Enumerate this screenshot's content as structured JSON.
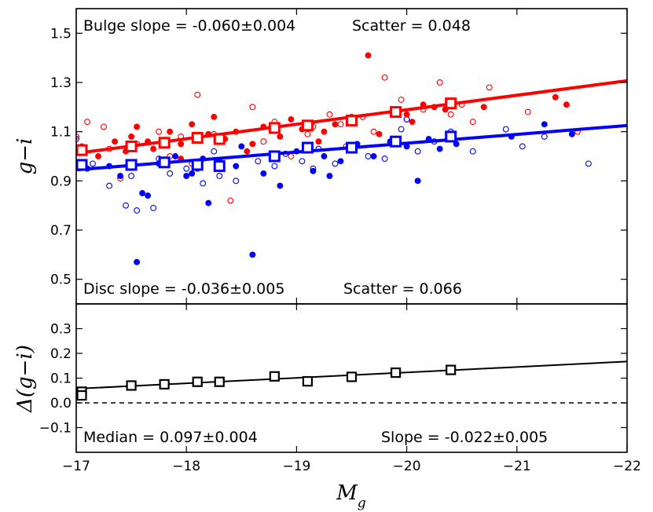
{
  "chart_data": [
    {
      "type": "scatter",
      "panel": "top",
      "ylabel": "g−i",
      "xlim": [
        -17,
        -22
      ],
      "ylim": [
        0.4,
        1.6
      ],
      "yticks": [
        "0.5",
        "0.7",
        "0.9",
        "1.1",
        "1.3",
        "1.5"
      ],
      "yticks_values": [
        0.5,
        0.7,
        0.9,
        1.1,
        1.3,
        1.5
      ],
      "annotations": {
        "bulge": "Bulge slope = -0.060±0.004",
        "bulge_scatter": "Scatter = 0.048",
        "disc": "Disc slope = -0.036±0.005",
        "disc_scatter": "Scatter = 0.066"
      },
      "colors": {
        "bulge": "#ff0000",
        "disc": "#0000ff"
      },
      "series": [
        {
          "name": "Bulge fit",
          "kind": "line",
          "x": [
            -17.0,
            -22.0
          ],
          "y": [
            1.012,
            1.307
          ]
        },
        {
          "name": "Disc fit",
          "kind": "line",
          "x": [
            -17.0,
            -22.0
          ],
          "y": [
            0.945,
            1.125
          ]
        },
        {
          "name": "Bulge median",
          "kind": "squares",
          "x": [
            -17.05,
            -17.5,
            -17.8,
            -18.1,
            -18.3,
            -18.8,
            -19.1,
            -19.5,
            -19.9,
            -20.4
          ],
          "y": [
            1.025,
            1.04,
            1.055,
            1.075,
            1.07,
            1.115,
            1.125,
            1.145,
            1.18,
            1.215
          ]
        },
        {
          "name": "Disc median",
          "kind": "squares",
          "x": [
            -17.05,
            -17.5,
            -17.8,
            -18.1,
            -18.3,
            -18.8,
            -19.1,
            -19.5,
            -19.9,
            -20.4
          ],
          "y": [
            0.965,
            0.965,
            0.975,
            0.965,
            0.96,
            1.0,
            1.035,
            1.035,
            1.06,
            1.08
          ]
        },
        {
          "name": "Bulge filled",
          "kind": "filled",
          "x": [
            -17.05,
            -17.2,
            -17.35,
            -17.5,
            -17.55,
            -17.7,
            -17.85,
            -17.95,
            -18.05,
            -18.2,
            -18.35,
            -18.45,
            -18.55,
            -18.7,
            -18.85,
            -18.95,
            -19.05,
            -19.2,
            -19.35,
            -19.5,
            -19.65,
            -19.75,
            -19.9,
            -20.05,
            -20.15,
            -20.25,
            -20.35,
            -20.7,
            -21.35,
            -21.45,
            -18.25,
            -17.95,
            -18.6,
            -19.25,
            -20.0,
            -17.45,
            -17.65
          ],
          "y": [
            1.04,
            1.0,
            1.06,
            1.08,
            1.12,
            1.03,
            1.1,
            1.05,
            1.13,
            1.09,
            1.07,
            1.1,
            1.02,
            1.12,
            1.08,
            1.15,
            1.11,
            1.06,
            1.13,
            1.16,
            1.41,
            1.09,
            1.18,
            1.14,
            1.21,
            1.2,
            1.19,
            1.2,
            1.24,
            1.21,
            1.16,
            0.99,
            1.05,
            1.1,
            1.17,
            1.02,
            1.06
          ]
        },
        {
          "name": "Bulge open",
          "kind": "open",
          "x": [
            -17.0,
            -17.1,
            -17.25,
            -17.4,
            -17.55,
            -17.75,
            -17.95,
            -18.1,
            -18.25,
            -18.4,
            -18.6,
            -18.8,
            -18.95,
            -19.15,
            -19.3,
            -19.45,
            -19.6,
            -19.7,
            -19.8,
            -19.95,
            -20.15,
            -20.3,
            -20.5,
            -20.75,
            -21.1,
            -21.55,
            -18.05,
            -18.7,
            -19.4,
            -20.0,
            -20.4,
            -17.3,
            -17.85,
            -19.1,
            -20.6
          ],
          "y": [
            1.08,
            1.14,
            1.12,
            0.91,
            1.05,
            1.1,
            1.08,
            1.25,
            1.09,
            0.82,
            1.2,
            1.14,
            1.0,
            1.12,
            1.17,
            1.04,
            1.16,
            1.1,
            1.32,
            1.23,
            1.19,
            1.3,
            1.21,
            1.28,
            1.18,
            1.1,
            0.97,
            1.06,
            1.13,
            1.15,
            1.17,
            1.03,
            1.0,
            1.09,
            1.14
          ]
        },
        {
          "name": "Disc filled",
          "kind": "filled",
          "x": [
            -17.1,
            -17.3,
            -17.4,
            -17.55,
            -17.6,
            -17.75,
            -17.9,
            -18.0,
            -18.1,
            -18.2,
            -18.3,
            -18.45,
            -18.6,
            -18.7,
            -18.85,
            -19.0,
            -19.15,
            -19.25,
            -19.4,
            -19.55,
            -19.7,
            -19.85,
            -20.0,
            -20.2,
            -20.3,
            -20.45,
            -20.95,
            -21.25,
            -21.5,
            -18.15,
            -18.5,
            -19.3,
            -20.1,
            -17.65,
            -18.05
          ],
          "y": [
            0.95,
            0.96,
            0.92,
            0.57,
            0.85,
            0.97,
            1.0,
            0.92,
            0.95,
            0.81,
            0.98,
            0.96,
            0.6,
            0.93,
            0.88,
            1.02,
            0.94,
            1.0,
            0.98,
            1.05,
            1.0,
            1.06,
            1.04,
            1.07,
            1.03,
            1.05,
            1.08,
            1.13,
            1.09,
            0.99,
            1.04,
            0.92,
            0.9,
            0.84,
            0.93
          ]
        },
        {
          "name": "Disc open",
          "kind": "open",
          "x": [
            -17.0,
            -17.15,
            -17.3,
            -17.45,
            -17.55,
            -17.7,
            -17.85,
            -18.0,
            -18.15,
            -18.3,
            -18.45,
            -18.65,
            -18.8,
            -18.9,
            -19.05,
            -19.2,
            -19.35,
            -19.5,
            -19.65,
            -19.8,
            -19.95,
            -20.1,
            -20.25,
            -20.4,
            -20.6,
            -20.9,
            -21.05,
            -21.25,
            -21.65,
            -17.5,
            -17.75,
            -18.25,
            -19.15,
            -20.0
          ],
          "y": [
            1.07,
            0.97,
            0.88,
            0.8,
            0.78,
            0.79,
            0.93,
            0.95,
            0.89,
            0.92,
            0.9,
            0.98,
            0.96,
            1.01,
            0.98,
            1.03,
            0.97,
            1.04,
            1.0,
            0.99,
            1.11,
            1.02,
            1.06,
            1.1,
            1.02,
            1.11,
            1.04,
            1.08,
            0.97,
            0.92,
            0.99,
            1.02,
            0.95,
            1.15
          ]
        }
      ]
    },
    {
      "type": "line",
      "panel": "bottom",
      "xlabel": "M_g",
      "ylabel": "Δ(g−i)",
      "xlim": [
        -17,
        -22
      ],
      "ylim": [
        -0.2,
        0.4
      ],
      "xticks": [
        "−17",
        "−18",
        "−19",
        "−20",
        "−21",
        "−22"
      ],
      "xticks_values": [
        -17,
        -18,
        -19,
        -20,
        -21,
        -22
      ],
      "yticks": [
        "−0.1",
        "0.0",
        "0.1",
        "0.2",
        "0.3"
      ],
      "yticks_values": [
        -0.1,
        0.0,
        0.1,
        0.2,
        0.3
      ],
      "annotations": {
        "median": "Median = 0.097±0.004",
        "slope": "Slope = -0.022±0.005"
      },
      "series": [
        {
          "name": "Difference fit",
          "kind": "line",
          "x": [
            -17.0,
            -22.0
          ],
          "y": [
            0.057,
            0.167
          ]
        },
        {
          "name": "Zero line",
          "kind": "dashed",
          "x": [
            -17.0,
            -22.0
          ],
          "y": [
            0.0,
            0.0
          ]
        },
        {
          "name": "Difference median",
          "kind": "squares",
          "x": [
            -17.05,
            -17.05,
            -17.5,
            -17.8,
            -18.1,
            -18.3,
            -18.8,
            -19.1,
            -19.5,
            -19.9,
            -20.4
          ],
          "y": [
            0.045,
            0.03,
            0.07,
            0.075,
            0.085,
            0.085,
            0.107,
            0.087,
            0.105,
            0.122,
            0.133
          ]
        }
      ]
    }
  ]
}
